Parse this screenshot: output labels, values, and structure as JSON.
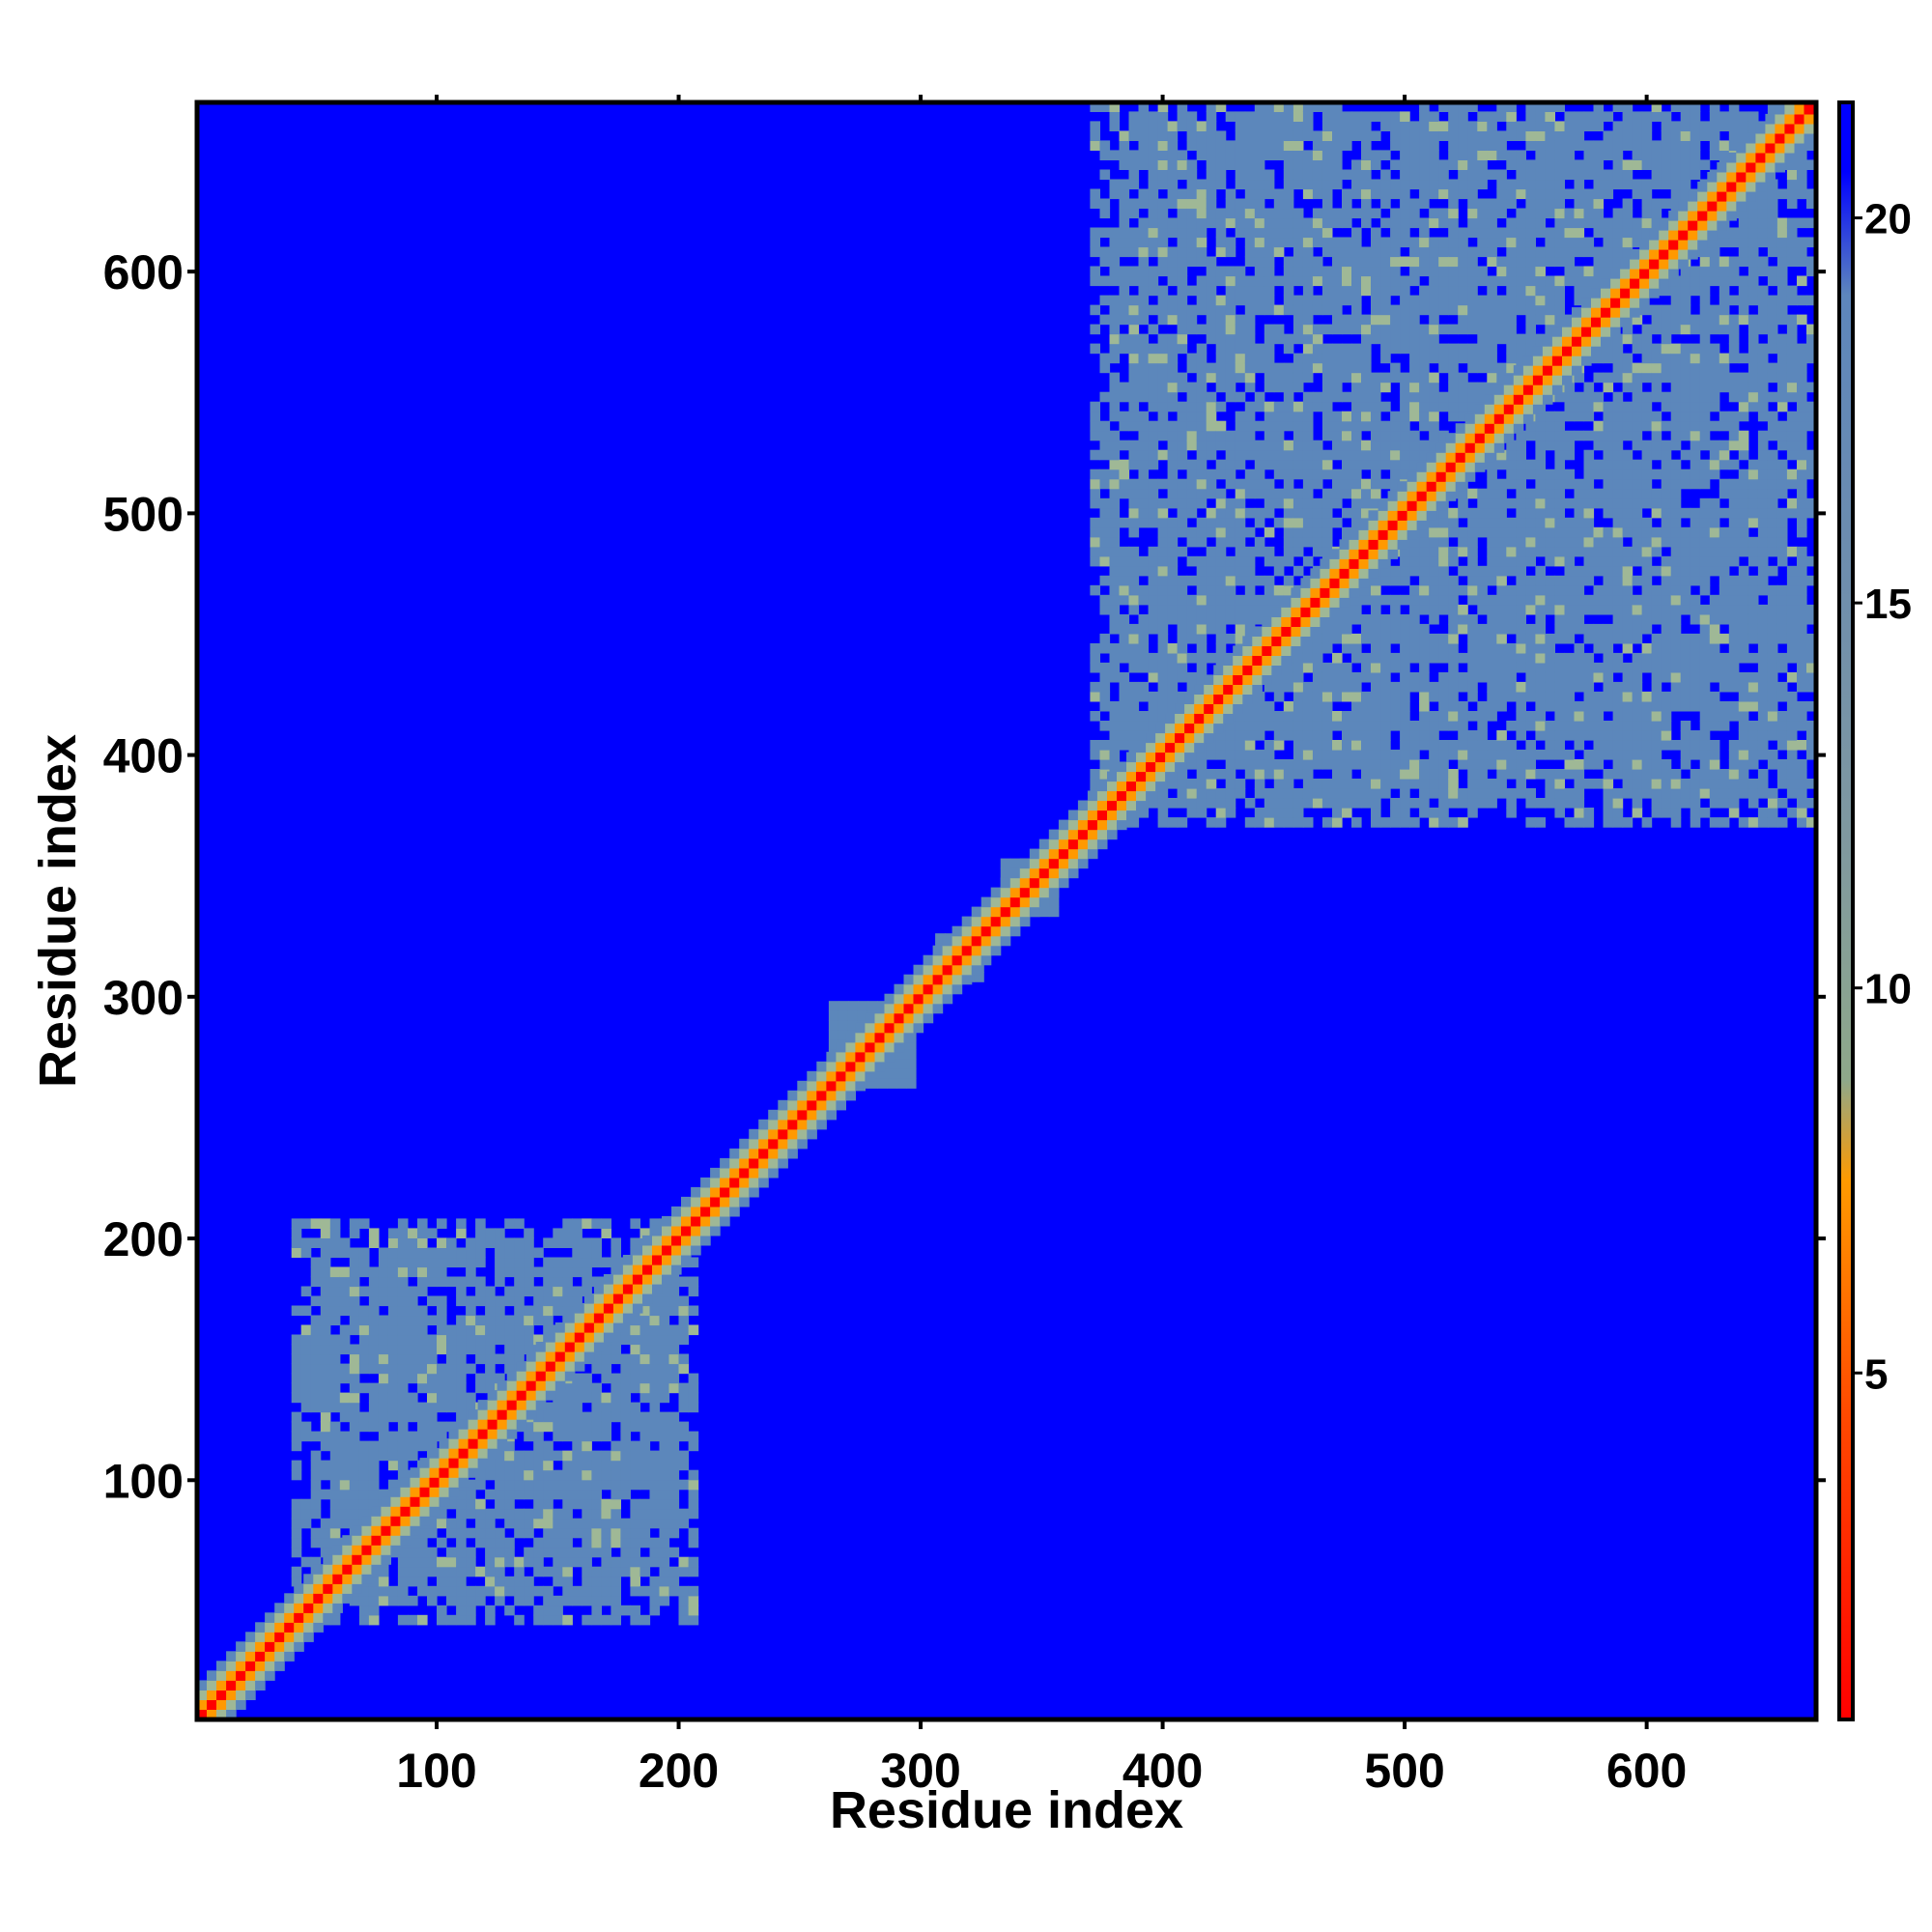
{
  "chart_data": {
    "type": "heatmap",
    "title": "",
    "xlabel": "Residue index",
    "ylabel": "Residue index",
    "xlim": [
      1,
      670
    ],
    "ylim": [
      1,
      670
    ],
    "x_ticks": [
      100,
      200,
      300,
      400,
      500,
      600
    ],
    "y_ticks": [
      100,
      200,
      300,
      400,
      500,
      600
    ],
    "colorbar": {
      "ticks": [
        5,
        10,
        15,
        20
      ],
      "range": [
        0.5,
        21.5
      ],
      "stops": [
        {
          "value": 0.5,
          "color": "#ff0000"
        },
        {
          "value": 4.5,
          "color": "#ff4a00"
        },
        {
          "value": 7.5,
          "color": "#ff9a00"
        },
        {
          "value": 8.8,
          "color": "#8fa88a"
        },
        {
          "value": 12.0,
          "color": "#7f98a0"
        },
        {
          "value": 16.0,
          "color": "#6b8cb0"
        },
        {
          "value": 19.0,
          "color": "#5d86bc"
        },
        {
          "value": 20.6,
          "color": "#0000ff"
        },
        {
          "value": 21.5,
          "color": "#0000ff"
        }
      ]
    },
    "colors": {
      "background": "#0000ff",
      "contact_region": "#5c87bb",
      "near_contact": "#9fb896",
      "close_contact": "#ff9900",
      "diagonal": "#ff0000"
    },
    "domains": [
      {
        "name_hidden": true,
        "range": [
          40,
          205
        ]
      },
      {
        "name_hidden": true,
        "range": [
          370,
          668
        ]
      }
    ],
    "diagonal_bulges": [
      {
        "center": 280,
        "halfwidth": 18
      },
      {
        "center": 315,
        "halfwidth": 9
      },
      {
        "center": 345,
        "halfwidth": 12
      }
    ]
  }
}
